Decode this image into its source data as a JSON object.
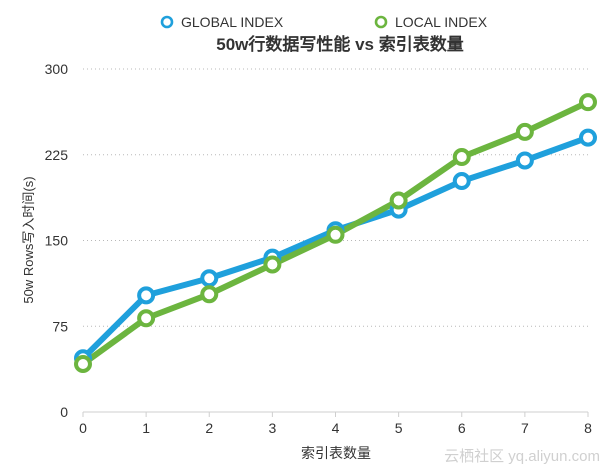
{
  "chart_data": {
    "type": "line",
    "title": "50w行数据写性能 vs 索引表数量",
    "xlabel": "索引表数量",
    "ylabel": "50w Rows写入时间(s)",
    "x": [
      0,
      1,
      2,
      3,
      4,
      5,
      6,
      7,
      8
    ],
    "xticks": [
      "0",
      "1",
      "2",
      "3",
      "4",
      "5",
      "6",
      "7",
      "8"
    ],
    "yticks": [
      "0",
      "75",
      "150",
      "225",
      "300"
    ],
    "xlim": [
      0,
      8
    ],
    "ylim": [
      0,
      300
    ],
    "grid": true,
    "legend": "top-center",
    "series": [
      {
        "name": "GLOBAL INDEX",
        "color": "#1fa0dc",
        "values": [
          47,
          102,
          117,
          135,
          159,
          177,
          202,
          220,
          240
        ]
      },
      {
        "name": "LOCAL INDEX",
        "color": "#6cb53f",
        "values": [
          42,
          82,
          103,
          129,
          155,
          185,
          223,
          245,
          271
        ]
      }
    ]
  },
  "watermark": "云栖社区 yq.aliyun.com"
}
